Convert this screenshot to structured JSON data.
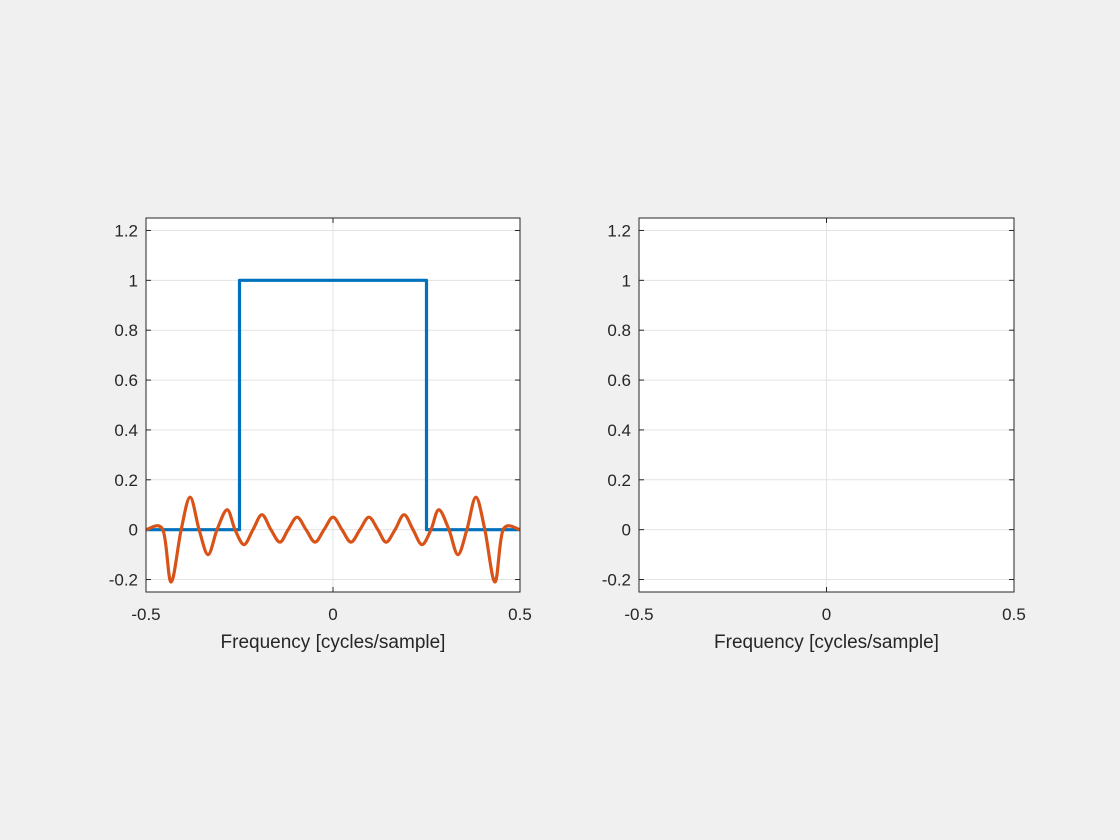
{
  "chart_data": [
    {
      "type": "line",
      "xlabel": "Frequency [cycles/sample]",
      "xlim": [
        -0.5,
        0.5
      ],
      "xticks": [
        -0.5,
        0,
        0.5
      ],
      "ylim": [
        -0.25,
        1.25
      ],
      "yticks": [
        -0.2,
        0,
        0.2,
        0.4,
        0.6,
        0.8,
        1,
        1.2
      ],
      "grid": true,
      "series": [
        {
          "color": "#0072bd",
          "x": [
            -0.5,
            -0.25,
            -0.25,
            0.25,
            0.25,
            0.5
          ],
          "values": [
            0,
            0,
            1,
            1,
            0,
            0
          ]
        },
        {
          "color": "#d95319",
          "x": [
            -0.5,
            -0.455,
            -0.433,
            -0.406,
            -0.382,
            -0.358,
            -0.334,
            -0.31,
            -0.283,
            -0.262,
            -0.238,
            -0.214,
            -0.19,
            -0.166,
            -0.142,
            -0.12,
            -0.096,
            -0.072,
            -0.048,
            -0.024,
            0,
            0.024,
            0.048,
            0.072,
            0.096,
            0.12,
            0.142,
            0.166,
            0.19,
            0.214,
            0.238,
            0.262,
            0.283,
            0.31,
            0.334,
            0.358,
            0.382,
            0.406,
            0.433,
            0.455,
            0.5
          ],
          "values": [
            0,
            0,
            -0.21,
            0,
            0.13,
            0,
            -0.1,
            0,
            0.08,
            0,
            -0.06,
            0,
            0.06,
            0,
            -0.05,
            0,
            0.05,
            0,
            -0.05,
            0,
            0.05,
            0,
            -0.05,
            0,
            0.05,
            0,
            -0.05,
            0,
            0.06,
            0,
            -0.06,
            0,
            0.08,
            0,
            -0.1,
            0,
            0.13,
            0,
            -0.21,
            0,
            0
          ]
        }
      ]
    },
    {
      "type": "line",
      "xlabel": "Frequency [cycles/sample]",
      "xlim": [
        -0.5,
        0.5
      ],
      "xticks": [
        -0.5,
        0,
        0.5
      ],
      "ylim": [
        -0.25,
        1.25
      ],
      "yticks": [
        -0.2,
        0,
        0.2,
        0.4,
        0.6,
        0.8,
        1,
        1.2
      ],
      "grid": true,
      "series": []
    }
  ]
}
